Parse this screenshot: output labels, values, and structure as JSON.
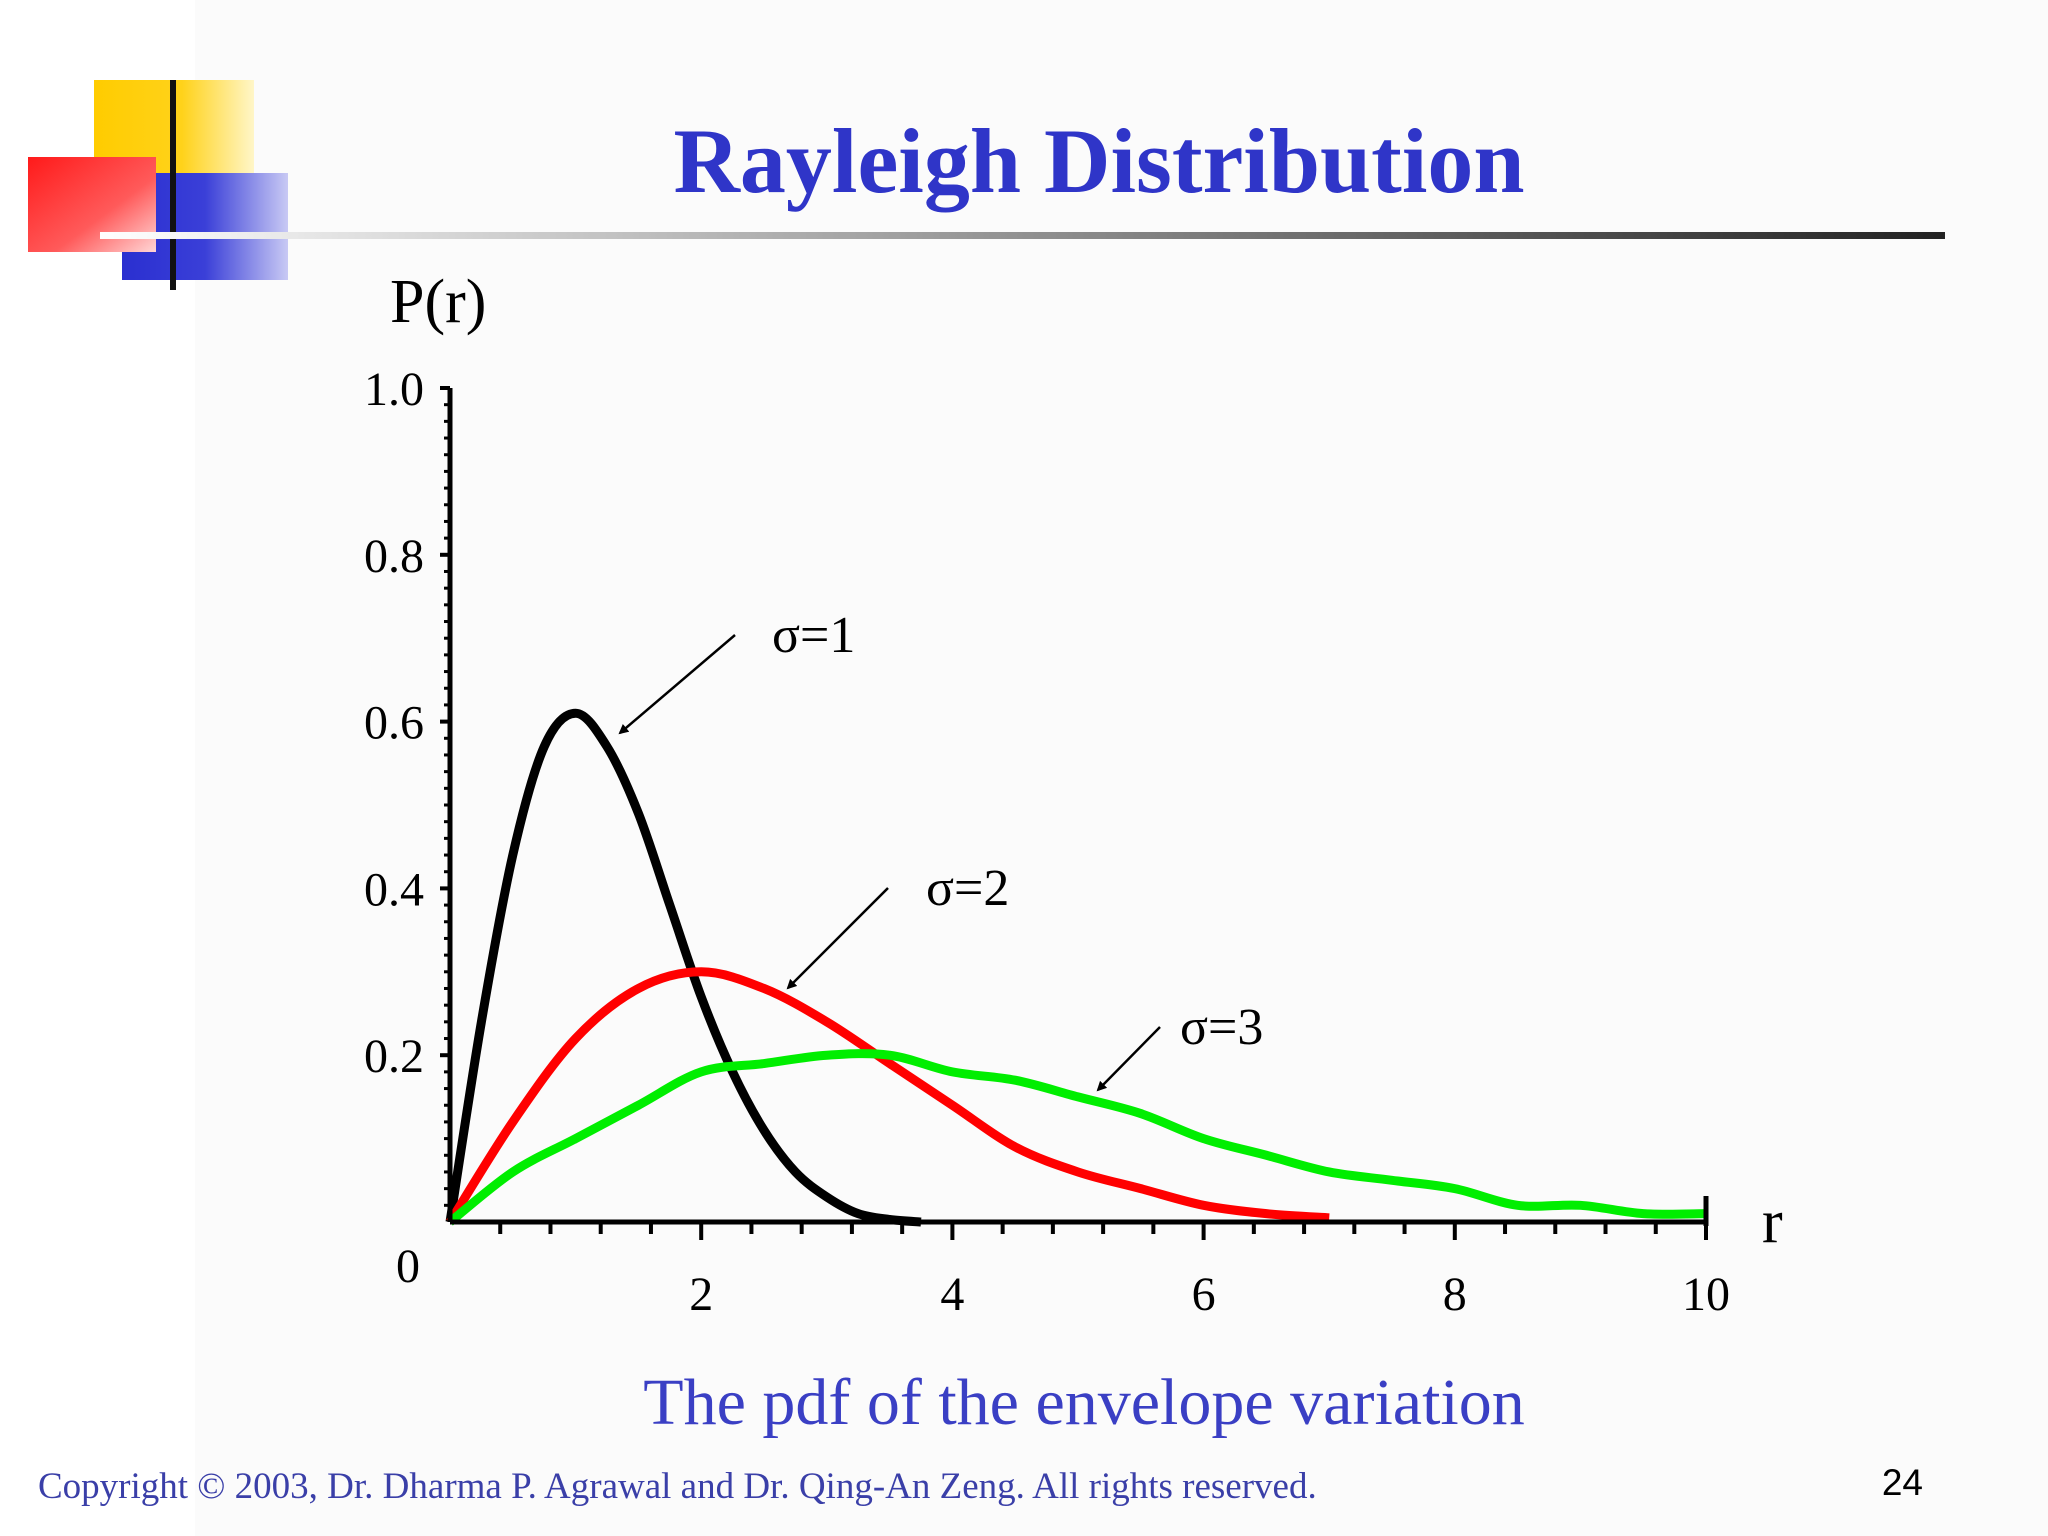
{
  "slide": {
    "title": "Rayleigh Distribution",
    "caption": "The pdf of the envelope variation",
    "copyright": "Copyright © 2003, Dr. Dharma P. Agrawal and Dr. Qing-An Zeng. All rights reserved.",
    "page_number": "24"
  },
  "colors": {
    "title": "#2f35c8",
    "accent_yellow": "#ffcc00",
    "accent_red": "#ff1a1a",
    "accent_blue": "#2a2fd0"
  },
  "chart_data": {
    "type": "line",
    "title": "",
    "xlabel": "r",
    "ylabel": "P(r)",
    "xlim": [
      0,
      10
    ],
    "ylim": [
      0,
      1.0
    ],
    "x_ticks": [
      {
        "value": 0,
        "label": "0"
      },
      {
        "value": 2,
        "label": "2"
      },
      {
        "value": 4,
        "label": "4"
      },
      {
        "value": 6,
        "label": "6"
      },
      {
        "value": 8,
        "label": "8"
      },
      {
        "value": 10,
        "label": "10"
      }
    ],
    "y_ticks": [
      {
        "value": 0.2,
        "label": "0.2"
      },
      {
        "value": 0.4,
        "label": "0.4"
      },
      {
        "value": 0.6,
        "label": "0.6"
      },
      {
        "value": 0.8,
        "label": "0.8"
      },
      {
        "value": 1.0,
        "label": "1.0"
      }
    ],
    "series": [
      {
        "name": "σ=1",
        "color": "#000000",
        "x": [
          0,
          0.25,
          0.5,
          0.75,
          1.0,
          1.25,
          1.5,
          1.75,
          2.0,
          2.25,
          2.5,
          2.75,
          3.0,
          3.25,
          3.5,
          3.75
        ],
        "y": [
          0,
          0.24,
          0.44,
          0.57,
          0.61,
          0.57,
          0.49,
          0.38,
          0.27,
          0.18,
          0.11,
          0.06,
          0.03,
          0.01,
          0.003,
          0.0
        ]
      },
      {
        "name": "σ=2",
        "color": "#ff0000",
        "x": [
          0,
          0.5,
          1.0,
          1.5,
          2.0,
          2.5,
          3.0,
          3.5,
          4.0,
          4.5,
          5.0,
          5.5,
          6.0,
          6.5,
          7.0
        ],
        "y": [
          0,
          0.12,
          0.22,
          0.28,
          0.3,
          0.28,
          0.24,
          0.19,
          0.14,
          0.09,
          0.06,
          0.04,
          0.02,
          0.01,
          0.005
        ]
      },
      {
        "name": "σ=3",
        "color": "#00ee00",
        "x": [
          0,
          0.5,
          1.0,
          1.5,
          2.0,
          2.5,
          3.0,
          3.5,
          4.0,
          4.5,
          5.0,
          5.5,
          6.0,
          6.5,
          7.0,
          7.5,
          8.0,
          8.5,
          9.0,
          9.5,
          10.0
        ],
        "y": [
          0,
          0.06,
          0.1,
          0.14,
          0.18,
          0.19,
          0.2,
          0.2,
          0.18,
          0.17,
          0.15,
          0.13,
          0.1,
          0.08,
          0.06,
          0.05,
          0.04,
          0.02,
          0.02,
          0.01,
          0.01
        ]
      }
    ],
    "annotations": [
      {
        "text": "σ=1",
        "series": "σ=1"
      },
      {
        "text": "σ=2",
        "series": "σ=2"
      },
      {
        "text": "σ=3",
        "series": "σ=3"
      }
    ],
    "grid": false,
    "legend": "none"
  }
}
